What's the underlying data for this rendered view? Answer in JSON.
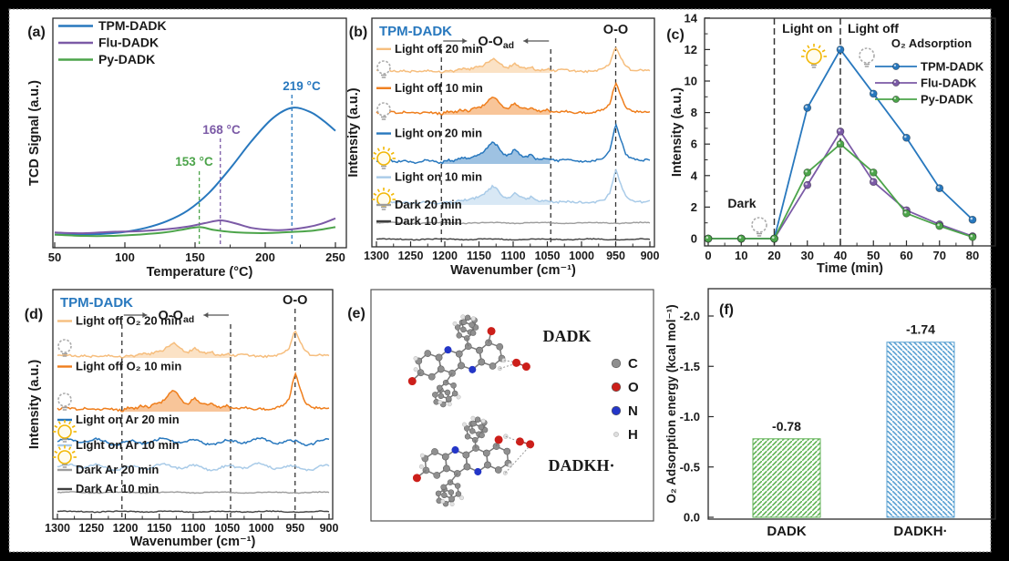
{
  "figure": {
    "background": "#000000",
    "paper_color": "#ffffff",
    "panel_labels": {
      "a": "(a)",
      "b": "(b)",
      "c": "(c)",
      "d": "(d)",
      "e": "(e)",
      "f": "(f)"
    }
  },
  "icons": {
    "light_on": "lightbulb-on-icon",
    "light_off": "lightbulb-off-icon"
  },
  "chart_data": [
    {
      "id": "a",
      "type": "line",
      "xlabel": "Temperature (°C)",
      "ylabel": "TCD Signal (a.u.)",
      "xlim": [
        50,
        250
      ],
      "xticks": [
        50,
        100,
        150,
        200,
        250
      ],
      "series": [
        {
          "name": "TPM-DADK",
          "color": "#2878BE",
          "peak_label": "219 °C",
          "peak_x": 219,
          "points": [
            [
              50,
              0.03
            ],
            [
              70,
              0.03
            ],
            [
              85,
              0.035
            ],
            [
              100,
              0.05
            ],
            [
              115,
              0.08
            ],
            [
              130,
              0.13
            ],
            [
              145,
              0.21
            ],
            [
              160,
              0.34
            ],
            [
              175,
              0.52
            ],
            [
              190,
              0.72
            ],
            [
              205,
              0.89
            ],
            [
              219,
              0.97
            ],
            [
              232,
              0.94
            ],
            [
              242,
              0.87
            ],
            [
              250,
              0.8
            ]
          ]
        },
        {
          "name": "Flu-DADK",
          "color": "#7B5AA6",
          "peak_label": "168 °C",
          "peak_x": 168,
          "points": [
            [
              50,
              0.045
            ],
            [
              70,
              0.04
            ],
            [
              90,
              0.05
            ],
            [
              110,
              0.055
            ],
            [
              130,
              0.07
            ],
            [
              145,
              0.09
            ],
            [
              157,
              0.115
            ],
            [
              168,
              0.135
            ],
            [
              178,
              0.115
            ],
            [
              190,
              0.08
            ],
            [
              203,
              0.065
            ],
            [
              215,
              0.065
            ],
            [
              230,
              0.085
            ],
            [
              240,
              0.11
            ],
            [
              250,
              0.15
            ]
          ]
        },
        {
          "name": "Py-DADK",
          "color": "#4CA44A",
          "peak_label": "153 °C",
          "peak_x": 153,
          "points": [
            [
              50,
              0.03
            ],
            [
              70,
              0.02
            ],
            [
              90,
              0.02
            ],
            [
              110,
              0.03
            ],
            [
              128,
              0.045
            ],
            [
              140,
              0.065
            ],
            [
              153,
              0.085
            ],
            [
              163,
              0.065
            ],
            [
              175,
              0.05
            ],
            [
              190,
              0.042
            ],
            [
              205,
              0.042
            ],
            [
              220,
              0.05
            ],
            [
              235,
              0.06
            ],
            [
              250,
              0.085
            ]
          ]
        }
      ]
    },
    {
      "id": "b",
      "type": "line",
      "title": "TPM-DADK",
      "title_color": "#2878BE",
      "xlabel": "Wavenumber (cm⁻¹)",
      "ylabel": "Intensity (a.u.)",
      "xlim": [
        1300,
        900
      ],
      "xticks": [
        1300,
        1250,
        1200,
        1150,
        1100,
        1050,
        1000,
        950,
        900
      ],
      "region": [
        1205,
        1045
      ],
      "region_label": {
        "main": "O-O",
        "sub": "ad"
      },
      "oo_line": 950,
      "oo_label": "O-O",
      "traces": [
        {
          "name": "Light off 20 min",
          "color": "#F6BE7E",
          "bulb": "off",
          "shape": "active",
          "fill": true
        },
        {
          "name": "Light off 10 min",
          "color": "#EF7E1C",
          "bulb": "off",
          "shape": "active",
          "fill": true
        },
        {
          "name": "Light on 20 min",
          "color": "#2878BE",
          "bulb": "on",
          "shape": "active",
          "fill": true
        },
        {
          "name": "Light on 10 min",
          "color": "#A9CBE8",
          "bulb": "on",
          "shape": "active",
          "fill": true
        },
        {
          "name": "Dark 20 min",
          "color": "#9C9C9C",
          "bulb": "none",
          "shape": "flat",
          "fill": false
        },
        {
          "name": "Dark 10 min",
          "color": "#3F3F3F",
          "bulb": "none",
          "shape": "flat",
          "fill": false
        }
      ],
      "base_shape": [
        [
          1300,
          0.04
        ],
        [
          1286,
          0.06
        ],
        [
          1272,
          0.03
        ],
        [
          1258,
          0.06
        ],
        [
          1244,
          0.03
        ],
        [
          1230,
          0.05
        ],
        [
          1216,
          0.03
        ],
        [
          1205,
          0.01
        ],
        [
          1196,
          0.07
        ],
        [
          1186,
          0.05
        ],
        [
          1176,
          0.1
        ],
        [
          1166,
          0.07
        ],
        [
          1156,
          0.11
        ],
        [
          1146,
          0.15
        ],
        [
          1138,
          0.24
        ],
        [
          1130,
          0.34
        ],
        [
          1122,
          0.27
        ],
        [
          1114,
          0.15
        ],
        [
          1106,
          0.13
        ],
        [
          1098,
          0.21
        ],
        [
          1090,
          0.13
        ],
        [
          1082,
          0.1
        ],
        [
          1074,
          0.14
        ],
        [
          1066,
          0.08
        ],
        [
          1058,
          0.07
        ],
        [
          1050,
          0.1
        ],
        [
          1044,
          0.06
        ],
        [
          1036,
          0.04
        ],
        [
          1024,
          0.06
        ],
        [
          1012,
          0.04
        ],
        [
          1000,
          0.05
        ],
        [
          988,
          0.04
        ],
        [
          976,
          0.06
        ],
        [
          966,
          0.09
        ],
        [
          958,
          0.22
        ],
        [
          950,
          0.62
        ],
        [
          943,
          0.38
        ],
        [
          936,
          0.17
        ],
        [
          928,
          0.09
        ],
        [
          918,
          0.06
        ],
        [
          908,
          0.05
        ],
        [
          900,
          0.06
        ]
      ]
    },
    {
      "id": "c",
      "type": "line",
      "xlabel": "Time (min)",
      "ylabel": "Intensity (a.u.)",
      "xlim": [
        0,
        85
      ],
      "ylim": [
        0,
        14
      ],
      "xticks": [
        0,
        10,
        20,
        30,
        40,
        50,
        60,
        70,
        80
      ],
      "yticks": [
        0,
        2,
        4,
        6,
        8,
        10,
        12,
        14
      ],
      "events": {
        "light_on_x": 20,
        "light_off_x": 40,
        "light_on_label": "Light on",
        "light_off_label": "Light off",
        "dark_label": "Dark"
      },
      "legend_title": "O₂ Adsorption",
      "series": [
        {
          "name": "TPM-DADK",
          "color": "#2878BE",
          "points": [
            [
              0,
              0
            ],
            [
              10,
              0
            ],
            [
              20,
              0
            ],
            [
              30,
              8.3
            ],
            [
              40,
              12
            ],
            [
              50,
              9.2
            ],
            [
              60,
              6.4
            ],
            [
              70,
              3.2
            ],
            [
              80,
              1.2
            ]
          ]
        },
        {
          "name": "Flu-DADK",
          "color": "#7B5AA6",
          "points": [
            [
              0,
              0
            ],
            [
              10,
              0
            ],
            [
              20,
              0
            ],
            [
              30,
              3.4
            ],
            [
              40,
              6.8
            ],
            [
              50,
              3.6
            ],
            [
              60,
              1.8
            ],
            [
              70,
              0.9
            ],
            [
              80,
              0.15
            ]
          ]
        },
        {
          "name": "Py-DADK",
          "color": "#4CA44A",
          "points": [
            [
              0,
              0
            ],
            [
              10,
              0
            ],
            [
              20,
              0
            ],
            [
              30,
              4.2
            ],
            [
              40,
              6.0
            ],
            [
              50,
              4.2
            ],
            [
              60,
              1.6
            ],
            [
              70,
              0.8
            ],
            [
              80,
              0.1
            ]
          ]
        }
      ]
    },
    {
      "id": "d",
      "type": "line",
      "title": "TPM-DADK",
      "title_color": "#2878BE",
      "xlabel": "Wavenumber (cm⁻¹)",
      "ylabel": "Intensity (a.u.)",
      "xlim": [
        1300,
        900
      ],
      "xticks": [
        1300,
        1250,
        1200,
        1150,
        1100,
        1050,
        1000,
        950,
        900
      ],
      "region": [
        1205,
        1045
      ],
      "region_label": {
        "main": "O-O",
        "sub": "ad"
      },
      "oo_line": 950,
      "oo_label": "O-O",
      "traces": [
        {
          "name": "Light off O₂ 20 min",
          "color": "#F6BE7E",
          "bulb": "off",
          "shape": "active",
          "fill": true
        },
        {
          "name": "Light off O₂ 10 min",
          "color": "#EF7E1C",
          "bulb": "off",
          "shape": "active",
          "fill": true
        },
        {
          "name": "Light on Ar 20 min",
          "color": "#2878BE",
          "bulb": "on",
          "shape": "wiggle",
          "fill": false
        },
        {
          "name": "Light on Ar 10 min",
          "color": "#A9CBE8",
          "bulb": "on",
          "shape": "wiggle",
          "fill": false
        },
        {
          "name": "Dark Ar 20 min",
          "color": "#9C9C9C",
          "bulb": "none",
          "shape": "flat",
          "fill": false
        },
        {
          "name": "Dark Ar 10 min",
          "color": "#3F3F3F",
          "bulb": "none",
          "shape": "flat",
          "fill": false
        }
      ],
      "base_shape": [
        [
          1300,
          0.04
        ],
        [
          1286,
          0.06
        ],
        [
          1272,
          0.03
        ],
        [
          1258,
          0.06
        ],
        [
          1244,
          0.03
        ],
        [
          1230,
          0.05
        ],
        [
          1216,
          0.03
        ],
        [
          1205,
          0.01
        ],
        [
          1196,
          0.07
        ],
        [
          1186,
          0.05
        ],
        [
          1176,
          0.1
        ],
        [
          1166,
          0.07
        ],
        [
          1156,
          0.11
        ],
        [
          1146,
          0.15
        ],
        [
          1138,
          0.24
        ],
        [
          1130,
          0.34
        ],
        [
          1122,
          0.27
        ],
        [
          1114,
          0.15
        ],
        [
          1106,
          0.13
        ],
        [
          1098,
          0.21
        ],
        [
          1090,
          0.13
        ],
        [
          1082,
          0.1
        ],
        [
          1074,
          0.14
        ],
        [
          1066,
          0.08
        ],
        [
          1058,
          0.07
        ],
        [
          1050,
          0.1
        ],
        [
          1044,
          0.06
        ],
        [
          1036,
          0.04
        ],
        [
          1024,
          0.06
        ],
        [
          1012,
          0.04
        ],
        [
          1000,
          0.05
        ],
        [
          988,
          0.04
        ],
        [
          976,
          0.06
        ],
        [
          966,
          0.09
        ],
        [
          958,
          0.22
        ],
        [
          950,
          0.62
        ],
        [
          943,
          0.38
        ],
        [
          936,
          0.17
        ],
        [
          928,
          0.09
        ],
        [
          918,
          0.06
        ],
        [
          908,
          0.05
        ],
        [
          900,
          0.06
        ]
      ]
    },
    {
      "id": "f",
      "type": "bar",
      "ylabel": "O₂ Adsorption energy (kcal mol⁻¹)",
      "yticks_values": [
        0,
        -0.5,
        -1.0,
        -1.5,
        -2.0
      ],
      "yticks_labels": [
        "0.0",
        "-0.5",
        "-1.0",
        "-1.5",
        "-2.0"
      ],
      "ylim": [
        0,
        -2.27
      ],
      "categories": [
        "DADK",
        "DADKH·"
      ],
      "values": [
        -0.78,
        -1.74
      ],
      "value_labels": [
        "-0.78",
        "-1.74"
      ],
      "bar_colors": [
        "#5FB254",
        "#58A0D2"
      ],
      "hatch": [
        "diagonal-up",
        "diagonal-down"
      ]
    }
  ],
  "panel_e": {
    "molecules": [
      {
        "label": "DADK"
      },
      {
        "label": "DADKH·"
      }
    ],
    "atom_legend": [
      {
        "symbol": "C",
        "color": "#8F8F8F"
      },
      {
        "symbol": "O",
        "color": "#CC1F1A"
      },
      {
        "symbol": "N",
        "color": "#2436C8"
      },
      {
        "symbol": "H",
        "color": "#DEDEDE"
      }
    ]
  }
}
